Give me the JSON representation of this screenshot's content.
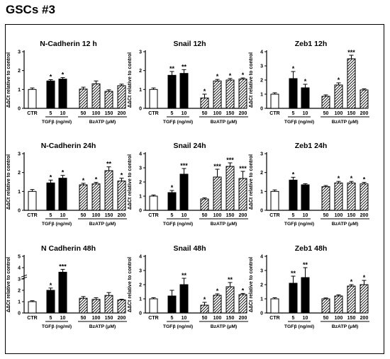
{
  "page_title": "GSCs #3",
  "ylabel": "ΔΔCt relative to control",
  "group_labels": {
    "tgf": "TGFβ (ng/ml)",
    "bz": "BzATP (μM)"
  },
  "chart_data": [
    {
      "type": "bar",
      "title": "N-Cadherin 12 h",
      "ylim": [
        0,
        3
      ],
      "yticks": [
        "0",
        "1",
        "2",
        "3"
      ],
      "categories": [
        "CTR",
        "5",
        "10",
        "50",
        "100",
        "150",
        "200"
      ],
      "values": [
        1.0,
        1.45,
        1.55,
        1.02,
        1.3,
        0.9,
        1.2
      ],
      "errors": [
        0.08,
        0.07,
        0.08,
        0.1,
        0.15,
        0.08,
        0.08
      ],
      "annotations": [
        "",
        "*",
        "*",
        "",
        "",
        "",
        ""
      ]
    },
    {
      "type": "bar",
      "title": "Snail 12h",
      "ylim": [
        0,
        3
      ],
      "yticks": [
        "0",
        "1",
        "2",
        "3"
      ],
      "categories": [
        "CTR",
        "5",
        "10",
        "50",
        "100",
        "150",
        "200"
      ],
      "values": [
        1.0,
        1.75,
        1.85,
        0.55,
        1.45,
        1.5,
        1.55
      ],
      "errors": [
        0.08,
        0.2,
        0.2,
        0.2,
        0.08,
        0.08,
        0.06
      ],
      "annotations": [
        "",
        "**",
        "**",
        "*",
        "*",
        "*",
        "*"
      ]
    },
    {
      "type": "bar",
      "title": "Zeb1 12h",
      "ylim": [
        0,
        4
      ],
      "yticks": [
        "0",
        "1",
        "2",
        "3",
        "4"
      ],
      "categories": [
        "CTR",
        "5",
        "10",
        "50",
        "100",
        "150",
        "200"
      ],
      "values": [
        1.0,
        2.1,
        1.45,
        0.85,
        1.65,
        3.5,
        1.3
      ],
      "errors": [
        0.1,
        0.5,
        0.25,
        0.1,
        0.15,
        0.25,
        0.08
      ],
      "annotations": [
        "",
        "*",
        "*",
        "",
        "*",
        "***",
        ""
      ]
    },
    {
      "type": "bar",
      "title": "N-Cadherin 24h",
      "ylim": [
        0,
        3
      ],
      "yticks": [
        "0",
        "1",
        "2",
        "3"
      ],
      "categories": [
        "CTR",
        "5",
        "10",
        "50",
        "100",
        "150",
        "200"
      ],
      "values": [
        1.0,
        1.45,
        1.7,
        1.35,
        1.4,
        2.1,
        1.55
      ],
      "errors": [
        0.1,
        0.15,
        0.15,
        0.08,
        0.08,
        0.2,
        0.15
      ],
      "annotations": [
        "",
        "*",
        "*",
        "*",
        "*",
        "**",
        "*"
      ]
    },
    {
      "type": "bar",
      "title": "Snail 24h",
      "ylim": [
        0,
        4
      ],
      "yticks": [
        "0",
        "1",
        "2",
        "3",
        "4"
      ],
      "categories": [
        "CTR",
        "5",
        "10",
        "50",
        "100",
        "150",
        "200"
      ],
      "values": [
        1.0,
        1.25,
        2.55,
        0.8,
        2.35,
        3.1,
        2.25
      ],
      "errors": [
        0.08,
        0.15,
        0.4,
        0.08,
        0.55,
        0.25,
        0.5
      ],
      "annotations": [
        "",
        "*",
        "***",
        "",
        "***",
        "***",
        "***"
      ]
    },
    {
      "type": "bar",
      "title": "Zeb1 24h",
      "ylim": [
        0,
        3
      ],
      "yticks": [
        "0",
        "1",
        "2",
        "3"
      ],
      "categories": [
        "CTR",
        "5",
        "10",
        "50",
        "100",
        "150",
        "200"
      ],
      "values": [
        1.0,
        1.6,
        1.35,
        1.25,
        1.45,
        1.45,
        1.4
      ],
      "errors": [
        0.08,
        0.15,
        0.06,
        0.06,
        0.08,
        0.08,
        0.08
      ],
      "annotations": [
        "",
        "*",
        "",
        "",
        "*",
        "*",
        "*"
      ]
    },
    {
      "type": "bar",
      "title": "N Cadherin 48h",
      "ylim": [
        0,
        5
      ],
      "yticks": [
        "0",
        "1",
        "2",
        "3",
        "4",
        "5"
      ],
      "axis_break": true,
      "categories": [
        "CTR",
        "5",
        "10",
        "50",
        "100",
        "150",
        "200"
      ],
      "values": [
        1.0,
        2.0,
        3.6,
        1.3,
        1.2,
        1.55,
        1.15
      ],
      "errors": [
        0.08,
        0.2,
        0.25,
        0.15,
        0.15,
        0.25,
        0.06
      ],
      "annotations": [
        "",
        "*",
        "***",
        "",
        "",
        "",
        ""
      ]
    },
    {
      "type": "bar",
      "title": "Snail 48h",
      "ylim": [
        0,
        4
      ],
      "yticks": [
        "0",
        "1",
        "2",
        "3",
        "4"
      ],
      "categories": [
        "CTR",
        "5",
        "10",
        "50",
        "100",
        "150",
        "200"
      ],
      "values": [
        1.0,
        1.2,
        2.0,
        0.55,
        1.25,
        1.85,
        1.3
      ],
      "errors": [
        0.08,
        0.4,
        0.45,
        0.2,
        0.1,
        0.3,
        0.08
      ],
      "annotations": [
        "",
        "",
        "**",
        "*",
        "*",
        "**",
        "*"
      ]
    },
    {
      "type": "bar",
      "title": "Zeb1 48h",
      "ylim": [
        0,
        4
      ],
      "yticks": [
        "0",
        "1",
        "2",
        "3",
        "4"
      ],
      "categories": [
        "CTR",
        "5",
        "10",
        "50",
        "100",
        "150",
        "200"
      ],
      "values": [
        1.0,
        2.1,
        2.5,
        1.0,
        1.2,
        1.9,
        2.0
      ],
      "errors": [
        0.08,
        0.5,
        0.7,
        0.06,
        0.08,
        0.1,
        0.3
      ],
      "annotations": [
        "",
        "**",
        "**",
        "",
        "",
        "*",
        "*"
      ]
    }
  ]
}
